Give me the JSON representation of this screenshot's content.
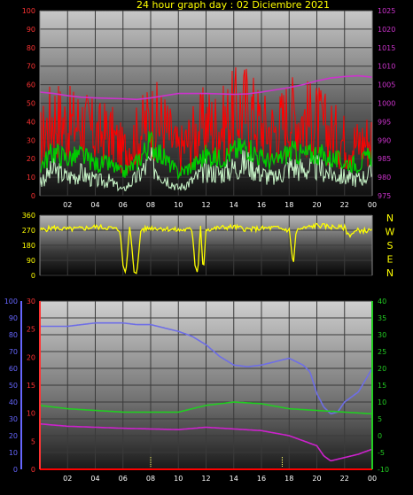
{
  "title": "24 hour graph day : 02 Diciembre 2021",
  "colors": {
    "background": "#000000",
    "title": "#ffff00",
    "grid": "#3a3a3a",
    "wind_gust": "#ff0000",
    "wind_avg": "#00cc00",
    "wind_light": "#c8f5c8",
    "pressure": "#cc33cc",
    "direction": "#ffff00",
    "humidity": "#6e6ee6",
    "temp1": "#22cc22",
    "temp2": "#cc22cc",
    "zero_line": "#ff0000",
    "left_axis1": "#ff3333",
    "right_axis1": "#cc33cc",
    "left_axis3_a": "#6666ff",
    "left_axis3_b": "#ff3333",
    "right_axis3": "#22cc22"
  },
  "time_ticks": [
    "02",
    "04",
    "06",
    "08",
    "10",
    "12",
    "14",
    "16",
    "18",
    "20",
    "22",
    "00"
  ],
  "compass": [
    "N",
    "W",
    "S",
    "E",
    "N"
  ],
  "chart_data": [
    {
      "type": "line",
      "name": "wind-pressure",
      "hours": [
        0,
        1,
        2,
        3,
        4,
        5,
        6,
        7,
        8,
        9,
        10,
        11,
        12,
        13,
        14,
        15,
        16,
        17,
        18,
        19,
        20,
        21,
        22,
        23,
        24
      ],
      "left_axis_ticks": [
        "100",
        "90",
        "80",
        "70",
        "60",
        "50",
        "40",
        "30",
        "20",
        "10",
        "0"
      ],
      "ylim": [
        0,
        100
      ],
      "right_axis_ticks": [
        "1025",
        "1020",
        "1015",
        "1010",
        "1005",
        "1000",
        "995",
        "990",
        "985",
        "980",
        "975"
      ],
      "y2lim": [
        975,
        1025
      ],
      "series": [
        {
          "key": "gust",
          "values": [
            30,
            44,
            38,
            40,
            33,
            34,
            24,
            32,
            42,
            38,
            24,
            32,
            40,
            37,
            45,
            48,
            38,
            35,
            44,
            42,
            40,
            34,
            30,
            28,
            32
          ]
        },
        {
          "key": "avg",
          "values": [
            16,
            24,
            20,
            22,
            17,
            17,
            12,
            18,
            29,
            20,
            12,
            16,
            22,
            20,
            24,
            27,
            20,
            18,
            24,
            22,
            23,
            20,
            18,
            17,
            22
          ]
        },
        {
          "key": "light",
          "values": [
            8,
            14,
            10,
            12,
            8,
            8,
            3,
            10,
            18,
            10,
            4,
            8,
            14,
            12,
            15,
            18,
            12,
            9,
            16,
            14,
            15,
            12,
            10,
            9,
            12
          ]
        },
        {
          "key": "pressure",
          "values": [
            1003,
            1002.6,
            1002,
            1001.6,
            1001.4,
            1001.3,
            1001.2,
            1001,
            1001.4,
            1002,
            1002.6,
            1002.6,
            1002.6,
            1002.5,
            1002.4,
            1002.5,
            1003,
            1003.6,
            1004.2,
            1005,
            1006,
            1006.8,
            1007.2,
            1007.4,
            1007
          ]
        }
      ]
    },
    {
      "type": "line",
      "name": "wind-direction",
      "left_axis_ticks": [
        "360",
        "270",
        "180",
        "90",
        "0"
      ],
      "ylim": [
        0,
        360
      ],
      "hours": [
        0,
        1,
        2,
        3,
        4,
        5,
        5.8,
        6,
        6.2,
        6.5,
        6.8,
        7,
        7.3,
        7.5,
        8,
        9,
        10,
        11,
        11.2,
        11.4,
        11.6,
        11.8,
        12,
        12.2,
        13,
        14,
        15,
        16,
        17,
        18,
        18.3,
        18.5,
        19,
        20,
        21,
        22,
        22.3,
        23,
        24
      ],
      "values": [
        270,
        285,
        275,
        280,
        290,
        285,
        270,
        60,
        10,
        300,
        20,
        10,
        280,
        275,
        285,
        280,
        270,
        275,
        60,
        10,
        300,
        10,
        280,
        275,
        285,
        290,
        275,
        280,
        285,
        270,
        60,
        270,
        280,
        300,
        290,
        285,
        240,
        270,
        265
      ]
    },
    {
      "type": "line",
      "name": "humidity-temperature",
      "humidity_axis_ticks": [
        "100",
        "90",
        "80",
        "70",
        "60",
        "50",
        "40",
        "30",
        "20",
        "10",
        "0"
      ],
      "hum_lim": [
        0,
        100
      ],
      "temp_left_ticks": [
        "30",
        "25",
        "20",
        "15",
        "10",
        "5",
        "0"
      ],
      "temp_left_lim": [
        0,
        30
      ],
      "temp_right_ticks": [
        "40",
        "35",
        "30",
        "25",
        "20",
        "15",
        "10",
        "5",
        "0",
        "-5",
        "-10"
      ],
      "temp_right_lim": [
        -10,
        40
      ],
      "x_markers": [
        8,
        17.5
      ],
      "series": [
        {
          "key": "humidity",
          "hours": [
            0,
            2,
            4,
            6,
            7,
            8,
            9,
            10,
            11,
            12,
            13,
            14,
            15,
            16,
            17,
            18,
            19,
            19.5,
            20,
            20.5,
            21,
            21.5,
            22,
            23,
            24
          ],
          "values": [
            85,
            85,
            87,
            87,
            86,
            86,
            84,
            82,
            79,
            74,
            67,
            62,
            61,
            62,
            64,
            66,
            62,
            58,
            45,
            37,
            33,
            34,
            40,
            46,
            60
          ]
        },
        {
          "key": "temp_green",
          "hours": [
            0,
            2,
            4,
            6,
            8,
            10,
            11,
            12,
            14,
            16,
            18,
            20,
            22,
            24
          ],
          "values": [
            9,
            8,
            7.5,
            7,
            7,
            7,
            8,
            9,
            10,
            9.5,
            8,
            7.5,
            7,
            6.5
          ]
        },
        {
          "key": "temp_magenta",
          "hours": [
            0,
            2,
            4,
            6,
            8,
            10,
            12,
            14,
            16,
            18,
            19,
            20,
            20.5,
            21,
            22,
            23,
            24
          ],
          "values": [
            3.5,
            2.8,
            2.5,
            2.2,
            2,
            1.8,
            2.5,
            2,
            1.5,
            0,
            -1.5,
            -3,
            -6,
            -7.5,
            -6.5,
            -5.5,
            -4
          ]
        }
      ]
    }
  ]
}
